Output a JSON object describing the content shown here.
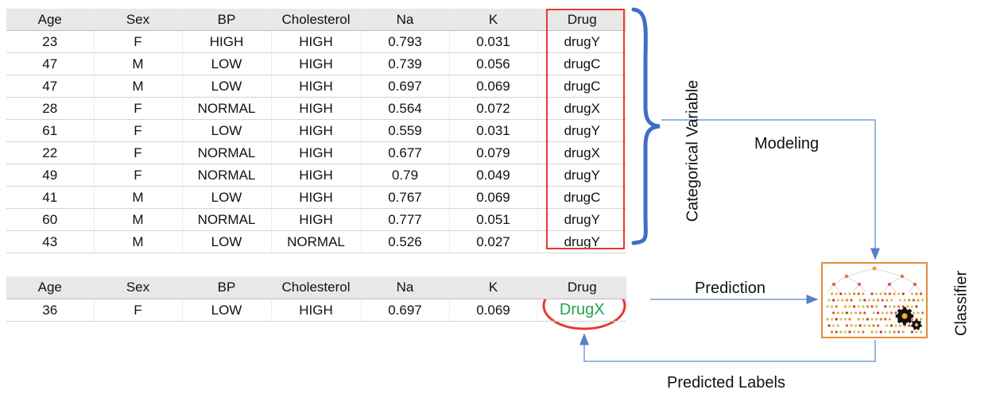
{
  "training_table": {
    "headers": [
      "Age",
      "Sex",
      "BP",
      "Cholesterol",
      "Na",
      "K",
      "Drug"
    ],
    "rows": [
      [
        "23",
        "F",
        "HIGH",
        "HIGH",
        "0.793",
        "0.031",
        "drugY"
      ],
      [
        "47",
        "M",
        "LOW",
        "HIGH",
        "0.739",
        "0.056",
        "drugC"
      ],
      [
        "47",
        "M",
        "LOW",
        "HIGH",
        "0.697",
        "0.069",
        "drugC"
      ],
      [
        "28",
        "F",
        "NORMAL",
        "HIGH",
        "0.564",
        "0.072",
        "drugX"
      ],
      [
        "61",
        "F",
        "LOW",
        "HIGH",
        "0.559",
        "0.031",
        "drugY"
      ],
      [
        "22",
        "F",
        "NORMAL",
        "HIGH",
        "0.677",
        "0.079",
        "drugX"
      ],
      [
        "49",
        "F",
        "NORMAL",
        "HIGH",
        "0.79",
        "0.049",
        "drugY"
      ],
      [
        "41",
        "M",
        "LOW",
        "HIGH",
        "0.767",
        "0.069",
        "drugC"
      ],
      [
        "60",
        "M",
        "NORMAL",
        "HIGH",
        "0.777",
        "0.051",
        "drugY"
      ],
      [
        "43",
        "M",
        "LOW",
        "NORMAL",
        "0.526",
        "0.027",
        "drugY"
      ]
    ]
  },
  "test_table": {
    "headers": [
      "Age",
      "Sex",
      "BP",
      "Cholesterol",
      "Na",
      "K",
      "Drug"
    ],
    "row": [
      "36",
      "F",
      "LOW",
      "HIGH",
      "0.697",
      "0.069"
    ],
    "predicted": "DrugX"
  },
  "labels": {
    "categorical_variable": "Categorical Variable",
    "modeling": "Modeling",
    "prediction": "Prediction",
    "classifier": "Classifier",
    "predicted_labels": "Predicted Labels"
  },
  "colors": {
    "highlight_box": "#e8382f",
    "predicted_text": "#22a34a",
    "brace": "#3f6fc4",
    "arrow": "#7a9cd3",
    "classifier_border": "#e58b3a"
  },
  "icons": {
    "brace": "curly-brace-icon",
    "classifier": "decision-tree-icon",
    "gears": "gears-icon"
  }
}
